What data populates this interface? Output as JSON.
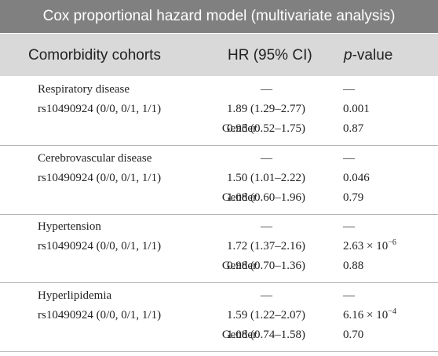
{
  "table": {
    "title": "Cox proportional hazard model (multivariate analysis)",
    "columns": {
      "cohort": "Comorbidity cohorts",
      "hr": "HR (95% CI)",
      "p_italic": "p",
      "p_rest": "-value"
    },
    "groups": [
      {
        "name": "Respiratory disease",
        "name_dash_hr": "—",
        "name_dash_p": "—",
        "snp_label": "rs10490924 (0/0, 0/1, 1/1)",
        "snp_hr": "1.89 (1.29–2.77)",
        "snp_p_base": "0.001",
        "snp_p_exp": "",
        "gender_label": "Gender",
        "gender_hr": "0.95 (0.52–1.75)",
        "gender_p": "0.87"
      },
      {
        "name": "Cerebrovascular disease",
        "name_dash_hr": "—",
        "name_dash_p": "—",
        "snp_label": "rs10490924 (0/0, 0/1, 1/1)",
        "snp_hr": "1.50 (1.01–2.22)",
        "snp_p_base": "0.046",
        "snp_p_exp": "",
        "gender_label": "Gender",
        "gender_hr": "1.08 (0.60–1.96)",
        "gender_p": "0.79"
      },
      {
        "name": "Hypertension",
        "name_dash_hr": "—",
        "name_dash_p": "—",
        "snp_label": "rs10490924 (0/0, 0/1, 1/1)",
        "snp_hr": "1.72 (1.37–2.16)",
        "snp_p_base": "2.63 × 10",
        "snp_p_exp": "−6",
        "gender_label": "Gender",
        "gender_hr": "0.98 (0.70–1.36)",
        "gender_p": "0.88"
      },
      {
        "name": "Hyperlipidemia",
        "name_dash_hr": "—",
        "name_dash_p": "—",
        "snp_label": "rs10490924 (0/0, 0/1, 1/1)",
        "snp_hr": "1.59 (1.22–2.07)",
        "snp_p_base": "6.16 × 10",
        "snp_p_exp": "−4",
        "gender_label": "Gender",
        "gender_hr": "1.08 (0.74–1.58)",
        "gender_p": "0.70"
      }
    ]
  },
  "colors": {
    "title_bg": "#808080",
    "header_bg": "#d9d9d9",
    "separator": "#b5b5b5",
    "text": "#222222"
  }
}
